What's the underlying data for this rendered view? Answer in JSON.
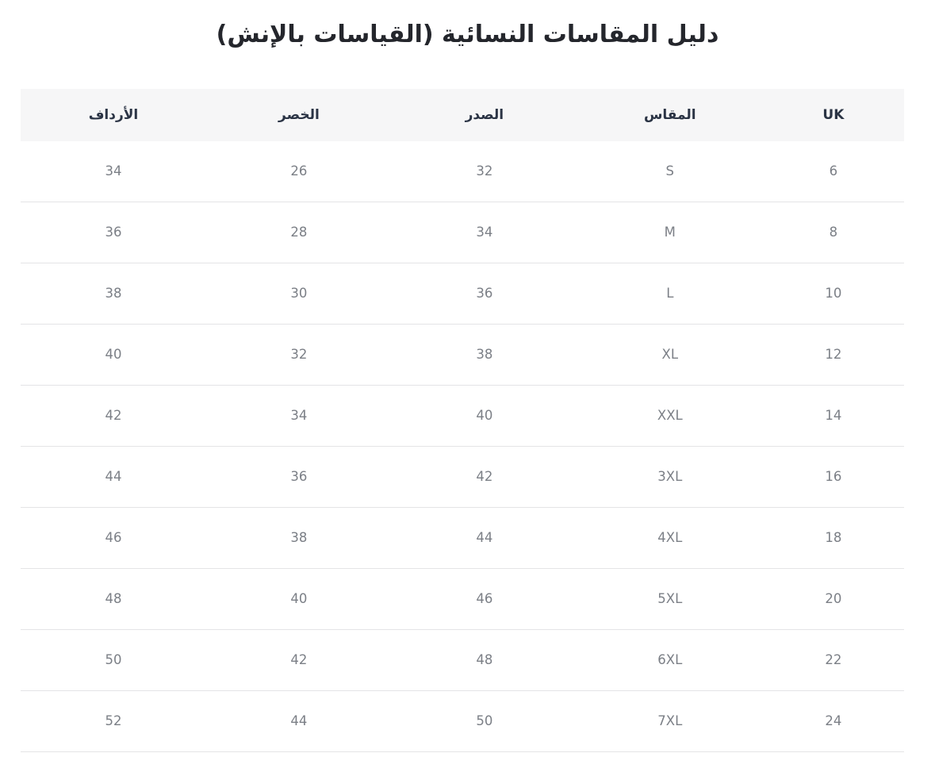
{
  "page": {
    "title": "دليل المقاسات النسائية (القياسات بالإنش)"
  },
  "size_table": {
    "columns": [
      "UK",
      "المقاس",
      "الصدر",
      "الخصر",
      "الأرداف"
    ],
    "rows": [
      [
        "6",
        "S",
        "32",
        "26",
        "34"
      ],
      [
        "8",
        "M",
        "34",
        "28",
        "36"
      ],
      [
        "10",
        "L",
        "36",
        "30",
        "38"
      ],
      [
        "12",
        "XL",
        "38",
        "32",
        "40"
      ],
      [
        "14",
        "XXL",
        "40",
        "34",
        "42"
      ],
      [
        "16",
        "3XL",
        "42",
        "36",
        "44"
      ],
      [
        "18",
        "4XL",
        "44",
        "38",
        "46"
      ],
      [
        "20",
        "5XL",
        "46",
        "40",
        "48"
      ],
      [
        "22",
        "6XL",
        "48",
        "42",
        "50"
      ],
      [
        "24",
        "7XL",
        "50",
        "44",
        "52"
      ]
    ]
  },
  "colors": {
    "header_background": "#f6f6f7",
    "header_text": "#2b3445",
    "body_text": "#7b7f86",
    "divider": "#e4e4e6",
    "title_text": "#24262c",
    "page_background": "#ffffff"
  }
}
